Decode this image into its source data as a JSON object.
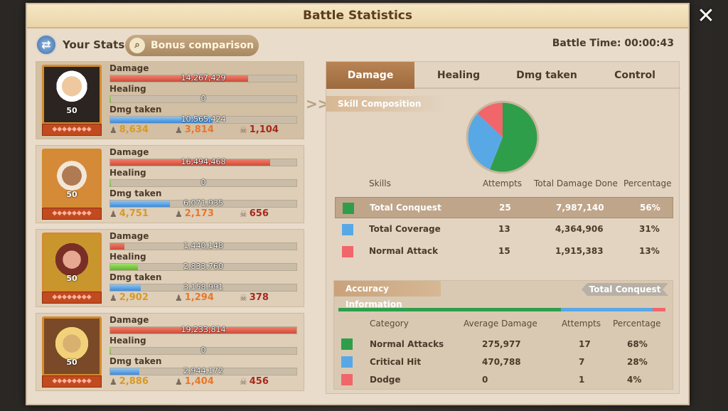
{
  "title": "Battle Statistics",
  "close_label": "✕",
  "header": {
    "your_stats": "Your Stats",
    "bonus_comparison": "Bonus comparison",
    "battle_time": "Battle Time: 00:00:43"
  },
  "heroes": [
    {
      "level": "50",
      "damage": "14,267,429",
      "damage_frac": 0.74,
      "healing": "0",
      "healing_frac": 0.0,
      "dmg_taken": "10,565,424",
      "dmg_taken_frac": 0.55,
      "stat1": "8,634",
      "stat2": "3,814",
      "stat3": "1,104"
    },
    {
      "level": "50",
      "damage": "16,494,468",
      "damage_frac": 0.86,
      "healing": "0",
      "healing_frac": 0.0,
      "dmg_taken": "6,071,935",
      "dmg_taken_frac": 0.32,
      "stat1": "4,751",
      "stat2": "2,173",
      "stat3": "656"
    },
    {
      "level": "50",
      "damage": "1,440,148",
      "damage_frac": 0.075,
      "healing": "2,833,760",
      "healing_frac": 0.15,
      "dmg_taken": "3,158,991",
      "dmg_taken_frac": 0.165,
      "stat1": "2,902",
      "stat2": "1,294",
      "stat3": "378"
    },
    {
      "level": "50",
      "damage": "19,233,814",
      "damage_frac": 1.0,
      "healing": "0",
      "healing_frac": 0.0,
      "dmg_taken": "2,944,172",
      "dmg_taken_frac": 0.155,
      "stat1": "2,886",
      "stat2": "1,404",
      "stat3": "456"
    }
  ],
  "stat_labels": {
    "damage": "Damage",
    "healing": "Healing",
    "dmg_taken": "Dmg taken"
  },
  "tabs": [
    "Damage",
    "Healing",
    "Dmg taken",
    "Control"
  ],
  "skill_composition": {
    "header": "Skill Composition",
    "columns": {
      "skills": "Skills",
      "attempts": "Attempts",
      "total": "Total Damage Done",
      "pct": "Percentage"
    },
    "rows": [
      {
        "name": "Total Conquest",
        "attempts": "25",
        "total": "7,987,140",
        "pct": "56%",
        "color": "#2e9e4a"
      },
      {
        "name": "Total Coverage",
        "attempts": "13",
        "total": "4,364,906",
        "pct": "31%",
        "color": "#58a8e6"
      },
      {
        "name": "Normal Attack",
        "attempts": "15",
        "total": "1,915,383",
        "pct": "13%",
        "color": "#f0666a"
      }
    ]
  },
  "accuracy": {
    "header": "Accuracy Information",
    "tag": "Total Conquest",
    "columns": {
      "category": "Category",
      "avg": "Average Damage",
      "attempts": "Attempts",
      "pct": "Percentage"
    },
    "rows": [
      {
        "name": "Normal Attacks",
        "avg": "275,977",
        "attempts": "17",
        "pct": "68%",
        "color": "#2e9e4a"
      },
      {
        "name": "Critical Hit",
        "avg": "470,788",
        "attempts": "7",
        "pct": "28%",
        "color": "#58a8e6"
      },
      {
        "name": "Dodge",
        "avg": "0",
        "attempts": "1",
        "pct": "4%",
        "color": "#f0666a"
      }
    ]
  },
  "chart_data": {
    "type": "pie",
    "categories": [
      "Total Conquest",
      "Total Coverage",
      "Normal Attack"
    ],
    "values": [
      56,
      31,
      13
    ],
    "colors": [
      "#2e9e4a",
      "#58a8e6",
      "#f0666a"
    ]
  }
}
